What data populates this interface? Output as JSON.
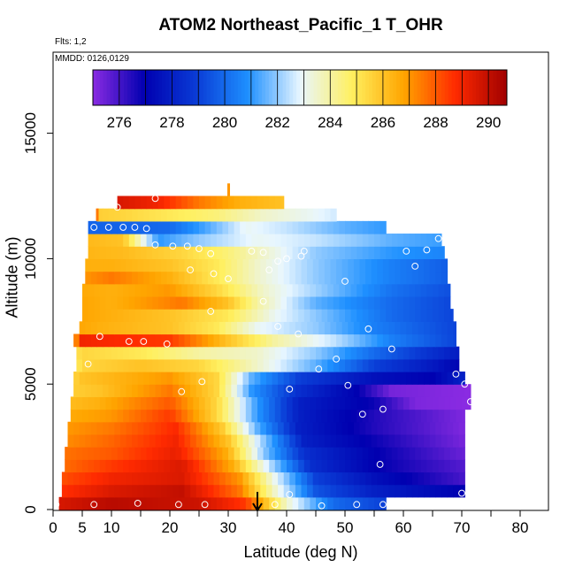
{
  "chart_data": {
    "type": "heatmap",
    "title": "ATOM2 Northeast_Pacific_1 T_OHR",
    "notes": [
      "Flts: 1,2",
      "MMDD: 0126,0129"
    ],
    "xlabel": "Latitude (deg N)",
    "ylabel": "Altitude (m)",
    "xlim": [
      0,
      85
    ],
    "ylim": [
      0,
      17500
    ],
    "x_ticks": [
      0,
      5,
      10,
      20,
      30,
      40,
      50,
      60,
      70,
      80
    ],
    "y_ticks": [
      0,
      5000,
      10000,
      15000
    ],
    "colorbar": {
      "range": [
        275,
        290.7
      ],
      "ticks": [
        276,
        278,
        280,
        282,
        284,
        286,
        288,
        290
      ],
      "colors": [
        "#8a2be2",
        "#0000b0",
        "#0a3cd6",
        "#1e90ff",
        "#e8f6ff",
        "#fff060",
        "#ffa500",
        "#ff2a00",
        "#a00000"
      ]
    },
    "marker_arrow": {
      "x": 35
    },
    "columns": [
      {
        "lat_min": 1.0,
        "lat_max": 57.0,
        "alt_min": 0,
        "alt_max": 500
      },
      {
        "lat_min": 1.5,
        "lat_max": 70.5,
        "alt_min": 500,
        "alt_max": 1000
      },
      {
        "lat_min": 1.5,
        "lat_max": 70.5,
        "alt_min": 1000,
        "alt_max": 1500
      },
      {
        "lat_min": 2.0,
        "lat_max": 70.5,
        "alt_min": 1500,
        "alt_max": 2000
      },
      {
        "lat_min": 2.0,
        "lat_max": 70.5,
        "alt_min": 2000,
        "alt_max": 2500
      },
      {
        "lat_min": 2.5,
        "lat_max": 70.5,
        "alt_min": 2500,
        "alt_max": 3000
      },
      {
        "lat_min": 2.5,
        "lat_max": 70.5,
        "alt_min": 3000,
        "alt_max": 3500
      },
      {
        "lat_min": 3.0,
        "lat_max": 70.5,
        "alt_min": 3500,
        "alt_max": 4000
      },
      {
        "lat_min": 3.0,
        "lat_max": 71.5,
        "alt_min": 4000,
        "alt_max": 4500
      },
      {
        "lat_min": 3.5,
        "lat_max": 71.5,
        "alt_min": 4500,
        "alt_max": 5000
      },
      {
        "lat_min": 3.5,
        "lat_max": 70.5,
        "alt_min": 5000,
        "alt_max": 5500
      },
      {
        "lat_min": 4.0,
        "lat_max": 69.5,
        "alt_min": 5500,
        "alt_max": 6000
      },
      {
        "lat_min": 4.0,
        "lat_max": 69.5,
        "alt_min": 6000,
        "alt_max": 6500
      },
      {
        "lat_min": 3.5,
        "lat_max": 69.0,
        "alt_min": 6500,
        "alt_max": 7000
      },
      {
        "lat_min": 4.5,
        "lat_max": 69.0,
        "alt_min": 7000,
        "alt_max": 7500
      },
      {
        "lat_min": 5.0,
        "lat_max": 68.5,
        "alt_min": 7500,
        "alt_max": 8000
      },
      {
        "lat_min": 5.0,
        "lat_max": 68.0,
        "alt_min": 8000,
        "alt_max": 8500
      },
      {
        "lat_min": 5.0,
        "lat_max": 68.0,
        "alt_min": 8500,
        "alt_max": 9000
      },
      {
        "lat_min": 5.5,
        "lat_max": 67.5,
        "alt_min": 9000,
        "alt_max": 9500
      },
      {
        "lat_min": 5.5,
        "lat_max": 67.5,
        "alt_min": 9500,
        "alt_max": 10000
      },
      {
        "lat_min": 6.0,
        "lat_max": 67.0,
        "alt_min": 10000,
        "alt_max": 10500
      },
      {
        "lat_min": 6.0,
        "lat_max": 66.5,
        "alt_min": 10500,
        "alt_max": 11000
      },
      {
        "lat_min": 6.0,
        "lat_max": 57.0,
        "alt_min": 11000,
        "alt_max": 11500
      },
      {
        "lat_min": 7.5,
        "lat_max": 48.5,
        "alt_min": 11500,
        "alt_max": 12000
      },
      {
        "lat_min": 11.0,
        "lat_max": 39.5,
        "alt_min": 12000,
        "alt_max": 12500
      }
    ],
    "row_profiles": [
      {
        "alt_min": 0,
        "lats": [
          0,
          10,
          25,
          33,
          40,
          48,
          57
        ],
        "temps": [
          289.5,
          290.2,
          289.8,
          288.5,
          283.5,
          280.0,
          279.0
        ]
      },
      {
        "alt_min": 500,
        "lats": [
          0,
          10,
          22,
          32,
          38,
          45,
          55,
          70
        ],
        "temps": [
          288.5,
          289.5,
          290.0,
          287.5,
          283.5,
          279.5,
          278.0,
          277.0
        ]
      },
      {
        "alt_min": 1000,
        "lats": [
          0,
          10,
          22,
          32,
          38,
          45,
          55,
          70
        ],
        "temps": [
          288.0,
          289.0,
          289.5,
          287.0,
          283.0,
          279.0,
          277.5,
          276.0
        ]
      },
      {
        "alt_min": 1500,
        "lats": [
          0,
          10,
          22,
          31,
          37,
          44,
          55,
          70
        ],
        "temps": [
          287.5,
          288.5,
          289.5,
          286.5,
          282.5,
          278.5,
          277.0,
          275.8
        ]
      },
      {
        "alt_min": 2000,
        "lats": [
          0,
          10,
          21,
          30,
          36,
          43,
          55,
          70
        ],
        "temps": [
          287.5,
          288.0,
          289.2,
          286.5,
          282.0,
          278.5,
          277.0,
          275.5
        ]
      },
      {
        "alt_min": 2500,
        "lats": [
          0,
          10,
          21,
          30,
          36,
          43,
          55,
          70
        ],
        "temps": [
          287.0,
          287.8,
          289.0,
          286.0,
          282.0,
          278.0,
          276.8,
          275.3
        ]
      },
      {
        "alt_min": 3000,
        "lats": [
          0,
          10,
          21,
          29,
          35,
          42,
          55,
          70
        ],
        "temps": [
          286.8,
          287.5,
          288.8,
          285.8,
          281.5,
          278.0,
          276.5,
          275.2
        ]
      },
      {
        "alt_min": 3500,
        "lats": [
          0,
          10,
          20,
          28,
          35,
          42,
          55,
          70
        ],
        "temps": [
          286.5,
          287.0,
          288.5,
          285.5,
          281.0,
          278.0,
          276.5,
          275.2
        ]
      },
      {
        "alt_min": 4000,
        "lats": [
          0,
          8,
          20,
          28,
          35,
          42,
          55,
          62,
          71
        ],
        "temps": [
          286.0,
          286.5,
          288.0,
          285.5,
          281.0,
          278.0,
          276.8,
          275.2,
          275.0
        ]
      },
      {
        "alt_min": 4500,
        "lats": [
          0,
          8,
          20,
          28,
          34,
          42,
          52,
          58,
          71
        ],
        "temps": [
          285.5,
          286.0,
          287.5,
          285.5,
          281.0,
          278.5,
          277.0,
          275.3,
          275.0
        ]
      },
      {
        "alt_min": 5000,
        "lats": [
          0,
          5,
          20,
          28,
          34,
          42,
          55,
          65,
          70
        ],
        "temps": [
          284.5,
          286.0,
          287.0,
          285.5,
          281.5,
          279.0,
          277.5,
          277.0,
          278.0
        ]
      },
      {
        "alt_min": 5500,
        "lats": [
          0,
          5,
          15,
          25,
          35,
          45,
          55,
          65,
          70
        ],
        "temps": [
          282.0,
          285.5,
          286.0,
          285.5,
          283.5,
          281.5,
          279.0,
          277.8,
          277.0
        ]
      },
      {
        "alt_min": 6000,
        "lats": [
          0,
          5,
          15,
          25,
          35,
          45,
          55,
          65,
          70
        ],
        "temps": [
          283.5,
          285.5,
          285.0,
          284.0,
          283.5,
          282.0,
          280.0,
          278.5,
          277.8
        ]
      },
      {
        "alt_min": 6500,
        "lats": [
          0,
          5,
          20,
          30,
          38,
          48,
          58,
          70
        ],
        "temps": [
          281.0,
          289.0,
          288.5,
          286.0,
          284.0,
          282.5,
          280.5,
          279.0
        ]
      },
      {
        "alt_min": 7000,
        "lats": [
          0,
          8,
          20,
          28,
          35,
          45,
          55,
          70
        ],
        "temps": [
          287.0,
          286.5,
          286.0,
          285.0,
          283.0,
          282.0,
          280.5,
          279.0
        ]
      },
      {
        "alt_min": 7500,
        "lats": [
          0,
          10,
          20,
          30,
          38,
          48,
          58,
          70
        ],
        "temps": [
          287.0,
          286.5,
          286.0,
          285.0,
          283.0,
          281.5,
          280.0,
          279.0
        ]
      },
      {
        "alt_min": 8000,
        "lats": [
          0,
          10,
          22,
          30,
          35,
          45,
          58,
          70
        ],
        "temps": [
          287.0,
          286.5,
          287.5,
          286.0,
          284.0,
          281.5,
          280.0,
          279.0
        ]
      },
      {
        "alt_min": 8500,
        "lats": [
          0,
          10,
          20,
          28,
          36,
          46,
          58,
          70
        ],
        "temps": [
          286.8,
          286.5,
          287.0,
          285.5,
          283.5,
          282.0,
          280.2,
          279.2
        ]
      },
      {
        "alt_min": 9000,
        "lats": [
          0,
          10,
          20,
          28,
          35,
          45,
          58,
          70
        ],
        "temps": [
          286.5,
          287.5,
          286.5,
          285.0,
          283.5,
          282.0,
          280.5,
          279.5
        ]
      },
      {
        "alt_min": 9500,
        "lats": [
          0,
          10,
          20,
          28,
          35,
          45,
          58,
          70
        ],
        "temps": [
          286.5,
          286.5,
          286.0,
          285.0,
          283.5,
          282.0,
          280.5,
          279.5
        ]
      },
      {
        "alt_min": 10000,
        "lats": [
          0,
          12,
          22,
          30,
          36,
          45,
          58,
          70
        ],
        "temps": [
          286.5,
          286.2,
          285.5,
          284.5,
          283.5,
          282.0,
          281.0,
          280.5
        ]
      },
      {
        "alt_min": 10500,
        "lats": [
          0,
          12,
          18,
          25,
          35,
          45,
          58,
          70
        ],
        "temps": [
          286.5,
          286.0,
          281.0,
          282.0,
          283.0,
          282.5,
          281.5,
          281.0
        ]
      },
      {
        "alt_min": 11000,
        "lats": [
          0,
          10,
          20,
          27,
          33,
          40,
          50,
          58
        ],
        "temps": [
          280.0,
          279.8,
          280.0,
          281.5,
          283.0,
          282.5,
          281.5,
          281.0
        ]
      },
      {
        "alt_min": 11500,
        "lats": [
          0,
          12,
          20,
          28,
          36,
          44,
          50
        ],
        "temps": [
          286.0,
          285.5,
          285.0,
          284.5,
          283.5,
          283.0,
          282.5
        ]
      },
      {
        "alt_min": 12000,
        "lats": [
          0,
          12,
          18,
          25,
          32,
          40
        ],
        "temps": [
          289.8,
          289.5,
          289.0,
          287.5,
          286.5,
          286.0
        ]
      }
    ],
    "spikes": [
      {
        "lat": 30.0,
        "alt_min": 12500,
        "alt_max": 13000,
        "temp": 287.0
      },
      {
        "lat": 7.5,
        "alt_min": 11500,
        "alt_max": 12000,
        "temp": 287.5
      }
    ],
    "circles": [
      [
        0.5,
        200
      ],
      [
        7,
        200
      ],
      [
        14.5,
        250
      ],
      [
        21.5,
        200
      ],
      [
        26,
        200
      ],
      [
        38,
        200
      ],
      [
        46,
        150
      ],
      [
        52,
        200
      ],
      [
        56.5,
        200
      ],
      [
        40.5,
        600
      ],
      [
        70,
        650
      ],
      [
        56,
        1800
      ],
      [
        53,
        3800
      ],
      [
        56.5,
        4000
      ],
      [
        71.5,
        4300
      ],
      [
        22,
        4700
      ],
      [
        40.5,
        4800
      ],
      [
        50.5,
        4950
      ],
      [
        25.5,
        5100
      ],
      [
        70.5,
        5000
      ],
      [
        69,
        5400
      ],
      [
        45.5,
        5600
      ],
      [
        48.5,
        6000
      ],
      [
        6,
        5800
      ],
      [
        2,
        6400
      ],
      [
        2.5,
        6500
      ],
      [
        58,
        6400
      ],
      [
        13,
        6700
      ],
      [
        15.5,
        6700
      ],
      [
        19.5,
        6600
      ],
      [
        8,
        6900
      ],
      [
        42,
        7000
      ],
      [
        54,
        7200
      ],
      [
        38.5,
        7300
      ],
      [
        27,
        7900
      ],
      [
        36,
        8300
      ],
      [
        30,
        9200
      ],
      [
        27.5,
        9400
      ],
      [
        23.5,
        9550
      ],
      [
        37,
        9550
      ],
      [
        50,
        9100
      ],
      [
        38.5,
        9900
      ],
      [
        40,
        10000
      ],
      [
        42.5,
        10100
      ],
      [
        62,
        9700
      ],
      [
        36,
        10250
      ],
      [
        43,
        10300
      ],
      [
        17.5,
        10550
      ],
      [
        20.5,
        10500
      ],
      [
        23,
        10500
      ],
      [
        25,
        10400
      ],
      [
        27,
        10200
      ],
      [
        34,
        10300
      ],
      [
        60.5,
        10300
      ],
      [
        64,
        10350
      ],
      [
        5,
        11250
      ],
      [
        7,
        11250
      ],
      [
        9.5,
        11250
      ],
      [
        12,
        11250
      ],
      [
        14,
        11250
      ],
      [
        16,
        11200
      ],
      [
        66,
        10800
      ],
      [
        11,
        12050
      ],
      [
        17.5,
        12400
      ]
    ]
  }
}
